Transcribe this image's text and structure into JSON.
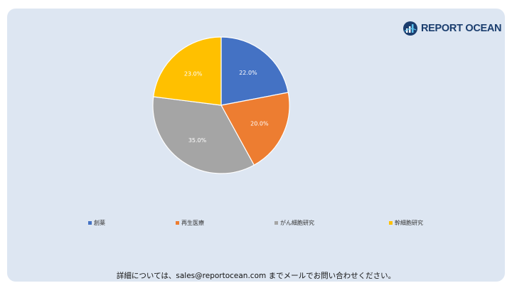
{
  "brand": {
    "name": "REPORT OCEAN"
  },
  "chart_data": {
    "type": "pie",
    "title": "",
    "categories": [
      "創薬",
      "再生医療",
      "がん細胞研究",
      "幹細胞研究"
    ],
    "values": [
      22.0,
      20.0,
      35.0,
      23.0
    ],
    "labels": [
      "22.0%",
      "20.0%",
      "35.0%",
      "23.0%"
    ],
    "colors": [
      "#4472c4",
      "#ed7d31",
      "#a5a5a5",
      "#ffc000"
    ],
    "legend_position": "bottom"
  },
  "footer": {
    "text": "詳細については、sales@reportocean.com までメールでお問い合わせください。"
  }
}
